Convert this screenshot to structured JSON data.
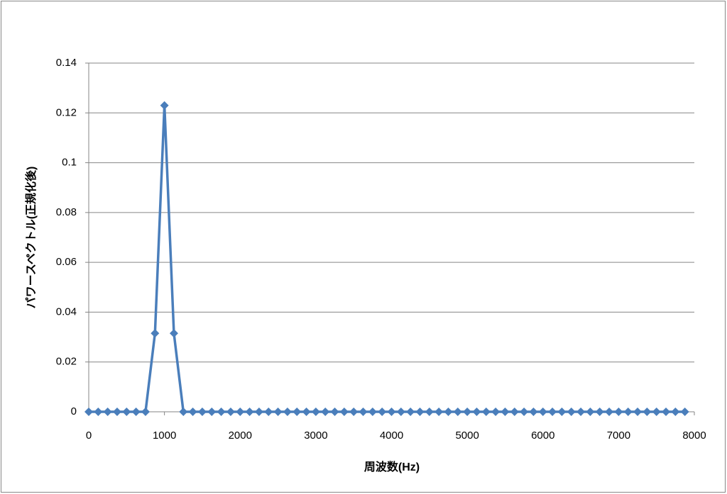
{
  "chart_data": {
    "type": "line",
    "x_label": "周波数(Hz)",
    "y_label": "パワースペクトル(正規化後)",
    "x": [
      0,
      125,
      250,
      375,
      500,
      625,
      750,
      875,
      1000,
      1125,
      1250,
      1375,
      1500,
      1625,
      1750,
      1875,
      2000,
      2125,
      2250,
      2375,
      2500,
      2625,
      2750,
      2875,
      3000,
      3125,
      3250,
      3375,
      3500,
      3625,
      3750,
      3875,
      4000,
      4125,
      4250,
      4375,
      4500,
      4625,
      4750,
      4875,
      5000,
      5125,
      5250,
      5375,
      5500,
      5625,
      5750,
      5875,
      6000,
      6125,
      6250,
      6375,
      6500,
      6625,
      6750,
      6875,
      7000,
      7125,
      7250,
      7375,
      7500,
      7625,
      7750,
      7875
    ],
    "series": [
      {
        "color": "#4a7ebb",
        "values": [
          0,
          0,
          0,
          0,
          0,
          0,
          0,
          0.0315,
          0.123,
          0.0315,
          0,
          0,
          0,
          0,
          0,
          0,
          0,
          0,
          0,
          0,
          0,
          0,
          0,
          0,
          0,
          0,
          0,
          0,
          0,
          0,
          0,
          0,
          0,
          0,
          0,
          0,
          0,
          0,
          0,
          0,
          0,
          0,
          0,
          0,
          0,
          0,
          0,
          0,
          0,
          0,
          0,
          0,
          0,
          0,
          0,
          0,
          0,
          0,
          0,
          0,
          0,
          0,
          0,
          0
        ]
      }
    ],
    "xlim": [
      0,
      8000
    ],
    "xticks": [
      0,
      1000,
      2000,
      3000,
      4000,
      5000,
      6000,
      7000,
      8000
    ],
    "ylim": [
      0,
      0.14
    ],
    "yticks": [
      0,
      0.02,
      0.04,
      0.06,
      0.08,
      0.1,
      0.12,
      0.14
    ],
    "grid": true
  }
}
